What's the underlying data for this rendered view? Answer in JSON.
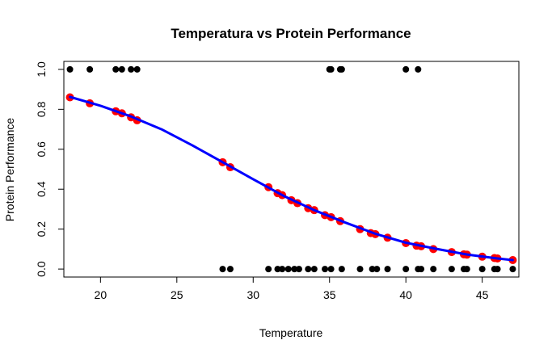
{
  "chart_data": {
    "type": "scatter",
    "title": "Temperatura vs Protein Performance",
    "xlabel": "Temperature",
    "ylabel": "Protein Performance",
    "xlim": [
      17.6,
      47.4
    ],
    "ylim": [
      -0.04,
      1.04
    ],
    "xticks": [
      "20",
      "25",
      "30",
      "35",
      "40",
      "45"
    ],
    "xtick_values": [
      20,
      25,
      30,
      35,
      40,
      45
    ],
    "yticks": [
      "0.0",
      "0.2",
      "0.4",
      "0.6",
      "0.8",
      "1.0"
    ],
    "ytick_values": [
      0.0,
      0.2,
      0.4,
      0.6,
      0.8,
      1.0
    ],
    "grid": false,
    "colors": {
      "observed": "#000000",
      "fitted": "#ff0000",
      "curve": "#0000ff"
    },
    "series": [
      {
        "kind": "observed",
        "points": [
          [
            18.0,
            1
          ],
          [
            19.3,
            1
          ],
          [
            21.0,
            1
          ],
          [
            21.4,
            1
          ],
          [
            22.0,
            1
          ],
          [
            22.4,
            1
          ],
          [
            35.0,
            1
          ],
          [
            35.1,
            1
          ],
          [
            35.7,
            1
          ],
          [
            35.8,
            1
          ],
          [
            40.0,
            1
          ],
          [
            40.8,
            1
          ],
          [
            28.0,
            0
          ],
          [
            28.5,
            0
          ],
          [
            31.0,
            0
          ],
          [
            31.6,
            0
          ],
          [
            31.9,
            0
          ],
          [
            32.3,
            0
          ],
          [
            32.7,
            0
          ],
          [
            33.0,
            0
          ],
          [
            33.6,
            0
          ],
          [
            34.0,
            0
          ],
          [
            34.7,
            0
          ],
          [
            35.1,
            0
          ],
          [
            35.8,
            0
          ],
          [
            37.0,
            0
          ],
          [
            37.8,
            0
          ],
          [
            38.1,
            0
          ],
          [
            38.8,
            0
          ],
          [
            40.0,
            0
          ],
          [
            40.8,
            0
          ],
          [
            41.0,
            0
          ],
          [
            41.8,
            0
          ],
          [
            43.0,
            0
          ],
          [
            43.8,
            0
          ],
          [
            44.0,
            0
          ],
          [
            45.0,
            0
          ],
          [
            45.8,
            0
          ],
          [
            46.0,
            0
          ],
          [
            47.0,
            0
          ]
        ]
      },
      {
        "kind": "fitted",
        "points": [
          [
            18.0,
            0.86
          ],
          [
            19.3,
            0.83
          ],
          [
            21.0,
            0.79
          ],
          [
            21.4,
            0.78
          ],
          [
            22.0,
            0.76
          ],
          [
            22.4,
            0.745
          ],
          [
            28.0,
            0.535
          ],
          [
            28.5,
            0.51
          ],
          [
            31.0,
            0.41
          ],
          [
            31.6,
            0.38
          ],
          [
            31.9,
            0.37
          ],
          [
            32.5,
            0.345
          ],
          [
            32.9,
            0.33
          ],
          [
            33.6,
            0.305
          ],
          [
            34.0,
            0.295
          ],
          [
            34.7,
            0.27
          ],
          [
            35.1,
            0.26
          ],
          [
            35.7,
            0.24
          ],
          [
            37.0,
            0.2
          ],
          [
            37.7,
            0.18
          ],
          [
            38.0,
            0.175
          ],
          [
            38.8,
            0.157
          ],
          [
            40.0,
            0.13
          ],
          [
            40.7,
            0.117
          ],
          [
            41.0,
            0.114
          ],
          [
            41.8,
            0.1
          ],
          [
            43.0,
            0.085
          ],
          [
            43.8,
            0.074
          ],
          [
            44.0,
            0.072
          ],
          [
            45.0,
            0.062
          ],
          [
            45.8,
            0.055
          ],
          [
            46.0,
            0.053
          ],
          [
            47.0,
            0.045
          ]
        ]
      },
      {
        "kind": "curve",
        "points": [
          [
            18,
            0.862
          ],
          [
            20,
            0.818
          ],
          [
            22,
            0.764
          ],
          [
            24,
            0.7
          ],
          [
            26,
            0.62
          ],
          [
            28,
            0.535
          ],
          [
            30,
            0.45
          ],
          [
            32,
            0.366
          ],
          [
            34,
            0.295
          ],
          [
            36,
            0.234
          ],
          [
            38,
            0.177
          ],
          [
            40,
            0.132
          ],
          [
            42,
            0.101
          ],
          [
            44,
            0.073
          ],
          [
            46,
            0.053
          ],
          [
            47,
            0.045
          ]
        ]
      }
    ]
  }
}
